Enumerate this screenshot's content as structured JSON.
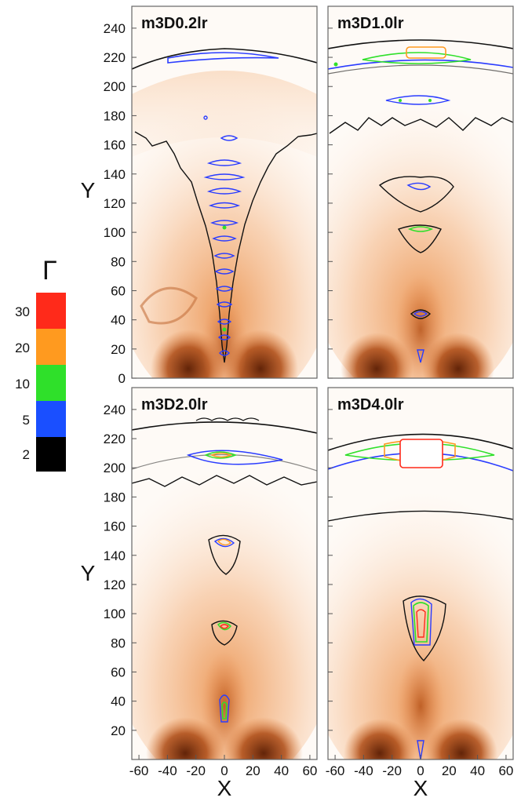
{
  "chart_data": {
    "type": "heatmap",
    "description_axes": {
      "x_label": "X",
      "y_label": "Y",
      "x_range": [
        -65,
        65
      ],
      "y_range": [
        0,
        255
      ],
      "x_ticks": [
        -60,
        -40,
        -20,
        0,
        20,
        40,
        60
      ],
      "y_ticks_top": [
        0,
        20,
        40,
        60,
        80,
        100,
        120,
        140,
        160,
        180,
        200,
        220,
        240
      ],
      "y_ticks_bottom": [
        20,
        40,
        60,
        80,
        100,
        120,
        140,
        160,
        180,
        200,
        220,
        240
      ]
    },
    "colorbar": {
      "symbol": "Γ",
      "levels": [
        {
          "label": "30",
          "color": "#ff2a1a"
        },
        {
          "label": "20",
          "color": "#ff9a1f"
        },
        {
          "label": "10",
          "color": "#2fe02a"
        },
        {
          "label": "5",
          "color": "#1a4fff"
        },
        {
          "label": "2",
          "color": "#000000"
        }
      ]
    },
    "panels": [
      {
        "title": "m3D0.2lr",
        "shock_front_y": 218,
        "jet_extent_y": [
          10,
          165
        ]
      },
      {
        "title": "m3D1.0lr",
        "shock_front_y": 222,
        "jet_extent_y": [
          10,
          168
        ]
      },
      {
        "title": "m3D2.0lr",
        "shock_front_y": 220,
        "jet_extent_y": [
          10,
          190
        ]
      },
      {
        "title": "m3D4.0lr",
        "shock_front_y": 225,
        "jet_extent_y": [
          10,
          168
        ]
      }
    ]
  }
}
